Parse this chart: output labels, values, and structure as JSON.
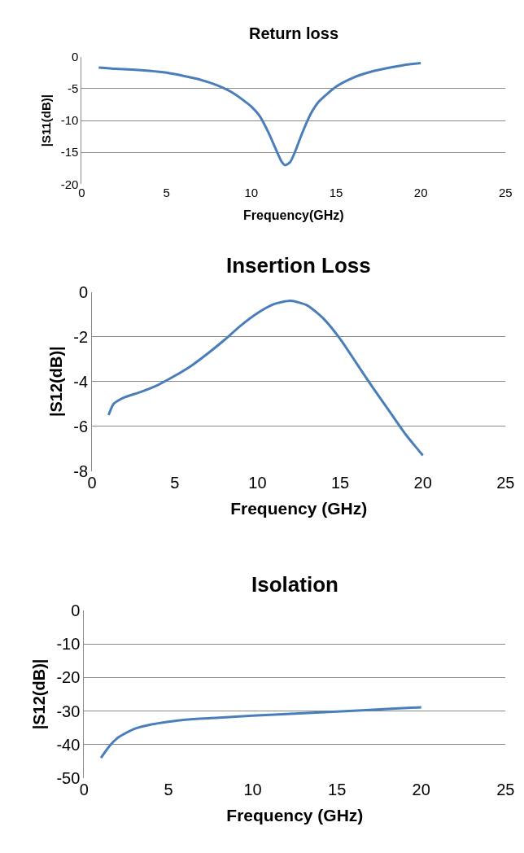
{
  "chart_data": [
    {
      "type": "line",
      "title": "Return loss",
      "xlabel": "Frequency(GHz)",
      "ylabel": "|S11(dB)|",
      "xlim": [
        0,
        25
      ],
      "xticks": [
        0,
        5,
        10,
        15,
        20,
        25
      ],
      "ylim": [
        -20,
        0
      ],
      "yticks": [
        -20,
        -15,
        -10,
        -5,
        0
      ],
      "grid": "y",
      "marker": "none",
      "x": [
        1,
        2,
        3,
        4,
        5,
        6,
        7,
        8,
        9,
        10,
        10.5,
        11,
        11.5,
        11.8,
        12,
        12.3,
        12.6,
        13,
        13.5,
        14,
        15,
        16,
        17,
        18,
        19,
        20
      ],
      "series": [
        {
          "color": "#4a7ebb",
          "values": [
            -1.7,
            -1.9,
            -2.0,
            -2.2,
            -2.5,
            -3.0,
            -3.6,
            -4.5,
            -5.8,
            -7.8,
            -9.3,
            -11.8,
            -14.8,
            -16.5,
            -17.0,
            -16.5,
            -14.8,
            -12.0,
            -9.0,
            -7.0,
            -4.7,
            -3.3,
            -2.4,
            -1.8,
            -1.3,
            -1.0
          ]
        }
      ]
    },
    {
      "type": "line",
      "title": "Insertion Loss",
      "xlabel": "Frequency (GHz)",
      "ylabel": "|S12(dB)|",
      "xlim": [
        0,
        25
      ],
      "xticks": [
        0,
        5,
        10,
        15,
        20,
        25
      ],
      "ylim": [
        -8,
        0
      ],
      "yticks": [
        -8,
        -6,
        -4,
        -2,
        0
      ],
      "grid": "y",
      "marker": "none",
      "x": [
        1,
        1.3,
        1.7,
        2,
        3,
        4,
        5,
        6,
        7,
        8,
        9,
        10,
        11,
        12,
        13,
        14,
        15,
        16,
        17,
        18,
        19,
        20
      ],
      "series": [
        {
          "color": "#4a7ebb",
          "values": [
            -5.5,
            -5.0,
            -4.8,
            -4.7,
            -4.45,
            -4.15,
            -3.75,
            -3.3,
            -2.75,
            -2.15,
            -1.5,
            -0.95,
            -0.55,
            -0.4,
            -0.6,
            -1.2,
            -2.1,
            -3.2,
            -4.3,
            -5.35,
            -6.4,
            -7.3
          ]
        }
      ]
    },
    {
      "type": "line",
      "title": "Isolation",
      "xlabel": "Frequency (GHz)",
      "ylabel": "|S12(dB)|",
      "xlim": [
        0,
        25
      ],
      "xticks": [
        0,
        5,
        10,
        15,
        20,
        25
      ],
      "ylim": [
        -50,
        0
      ],
      "yticks": [
        -50,
        -40,
        -30,
        -20,
        -10,
        0
      ],
      "grid": "y",
      "marker": "none",
      "x": [
        1,
        1.5,
        2,
        2.5,
        3,
        4,
        5,
        6,
        8,
        10,
        12,
        15,
        18,
        20
      ],
      "series": [
        {
          "color": "#4a7ebb",
          "values": [
            -44,
            -40.5,
            -38,
            -36.5,
            -35.3,
            -34,
            -33.2,
            -32.6,
            -32,
            -31.4,
            -30.9,
            -30.2,
            -29.4,
            -28.9
          ]
        }
      ]
    }
  ]
}
